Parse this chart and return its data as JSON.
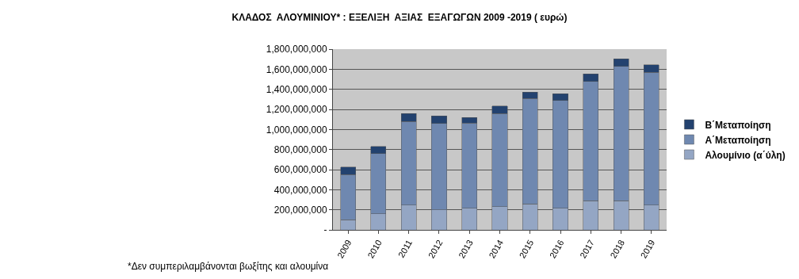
{
  "chart_data": {
    "type": "bar",
    "stacked": true,
    "title": "ΚΛΑΔΟΣ  ΑΛΟΥΜΙΝΙΟΥ* : ΕΞΕΛΙΞΗ  ΑΞΙΑΣ  ΕΞΑΓΩΓΩΝ 2009 -2019 ( ευρώ)",
    "categories": [
      "2009",
      "2010",
      "2011",
      "2012",
      "2013",
      "2014",
      "2015",
      "2016",
      "2017",
      "2018",
      "2019"
    ],
    "series": [
      {
        "name": "Αλουμίνιο (α΄ύλη)",
        "color": "#94a6c4",
        "values": [
          100000000,
          160000000,
          245000000,
          200000000,
          215000000,
          230000000,
          260000000,
          215000000,
          290000000,
          290000000,
          245000000
        ]
      },
      {
        "name": "Α΄Μεταποίηση",
        "color": "#6f88b0",
        "values": [
          450000000,
          600000000,
          835000000,
          860000000,
          850000000,
          930000000,
          1050000000,
          1075000000,
          1190000000,
          1340000000,
          1325000000
        ]
      },
      {
        "name": "Β΄Μεταποίηση",
        "color": "#23426f",
        "values": [
          75000000,
          70000000,
          80000000,
          75000000,
          55000000,
          75000000,
          60000000,
          65000000,
          75000000,
          75000000,
          75000000
        ]
      }
    ],
    "ylim": [
      0,
      1800000000
    ],
    "yticks": [
      {
        "value": 0,
        "label": "-"
      },
      {
        "value": 200000000,
        "label": "200,000,000"
      },
      {
        "value": 400000000,
        "label": "400,000,000"
      },
      {
        "value": 600000000,
        "label": "600,000,000"
      },
      {
        "value": 800000000,
        "label": "800,000,000"
      },
      {
        "value": 1000000000,
        "label": "1,000,000,000"
      },
      {
        "value": 1200000000,
        "label": "1,200,000,000"
      },
      {
        "value": 1400000000,
        "label": "1,400,000,000"
      },
      {
        "value": 1600000000,
        "label": "1,600,000,000"
      },
      {
        "value": 1800000000,
        "label": "1,800,000,000"
      }
    ],
    "grid": "y",
    "legend": "right",
    "annotations": [
      "*Δεν συμπεριλαμβάνονται βωξίτης και αλουμίνα"
    ]
  }
}
